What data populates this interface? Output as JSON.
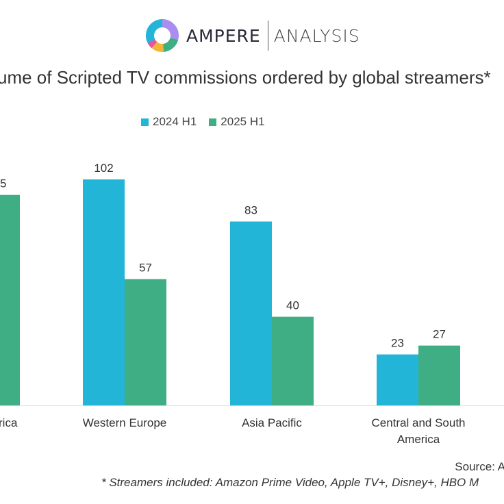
{
  "logo": {
    "brand": "AMPERE",
    "sub": "ANALYSIS"
  },
  "chart_data": {
    "type": "bar",
    "title": "ume of Scripted TV commissions ordered by global streamers*",
    "categories": [
      "North America",
      "Western Europe",
      "Asia Pacific",
      "Central and South America"
    ],
    "category_labels_visible": [
      "rica",
      "Western Europe",
      "Asia Pacific",
      "Central and South|America"
    ],
    "series": [
      {
        "name": "2024 H1",
        "color": "#22b5d8",
        "values": [
          null,
          102,
          83,
          23
        ]
      },
      {
        "name": "2025 H1",
        "color": "#3fae85",
        "values": [
          95,
          57,
          40,
          27
        ]
      }
    ],
    "data_labels_visible": [
      [
        null,
        "102",
        "83",
        "23"
      ],
      [
        "5",
        "57",
        "40",
        "27"
      ]
    ],
    "ylim": [
      0,
      110
    ],
    "grid": false,
    "legend": "top"
  },
  "source": "Source: A",
  "footnote": "* Streamers included: Amazon Prime Video, Apple TV+, Disney+, HBO M"
}
